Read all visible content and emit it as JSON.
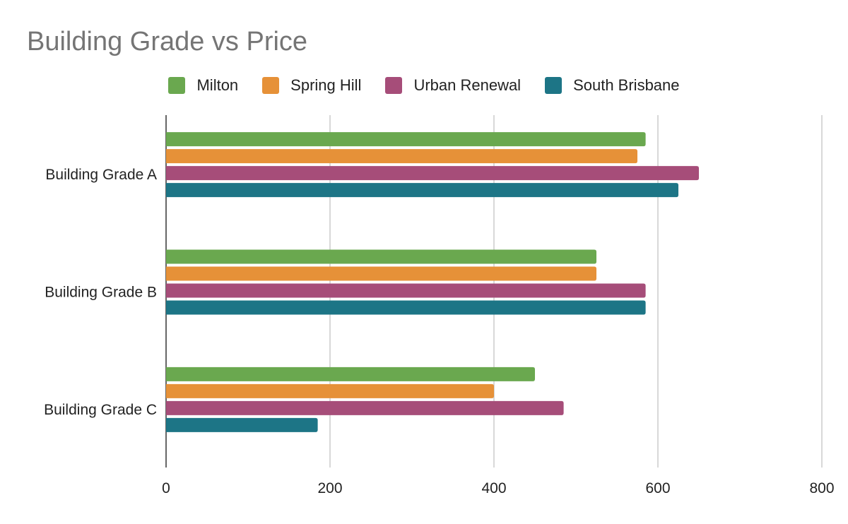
{
  "chart_data": {
    "type": "bar",
    "orientation": "horizontal",
    "title": "Building Grade vs Price",
    "xlabel": "",
    "ylabel": "",
    "xlim": [
      0,
      800
    ],
    "xticks": [
      0,
      200,
      400,
      600,
      800
    ],
    "grid": true,
    "legend_position": "top",
    "categories": [
      "Building Grade A",
      "Building Grade B",
      "Building Grade C"
    ],
    "series": [
      {
        "name": "Milton",
        "color": "#6aa84f",
        "values": [
          585,
          525,
          450
        ]
      },
      {
        "name": "Spring Hill",
        "color": "#e69138",
        "values": [
          575,
          525,
          400
        ]
      },
      {
        "name": "Urban Renewal",
        "color": "#a64d79",
        "values": [
          650,
          585,
          485
        ]
      },
      {
        "name": "South Brisbane",
        "color": "#1d7586",
        "values": [
          625,
          585,
          185
        ]
      }
    ]
  }
}
